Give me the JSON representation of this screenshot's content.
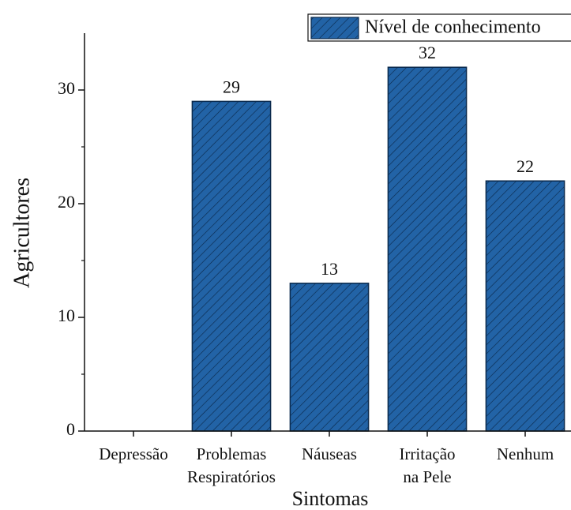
{
  "chart_data": {
    "type": "bar",
    "x_label": "Sintomas",
    "y_label": "Agricultores",
    "categories": [
      [
        "Depressão"
      ],
      [
        "Problemas",
        "Respiratórios"
      ],
      [
        "Náuseas"
      ],
      [
        "Irritação",
        "na Pele"
      ],
      [
        "Nenhum"
      ]
    ],
    "series": [
      {
        "name": "Nível de conhecimento",
        "color": "#2263a6",
        "values": [
          0,
          29,
          13,
          32,
          22
        ]
      }
    ],
    "ylim": [
      0,
      35
    ],
    "yticks": [
      0,
      10,
      20,
      30
    ],
    "yticks_minor": [
      5,
      15,
      25
    ],
    "grid": false,
    "legend": "top-right"
  }
}
